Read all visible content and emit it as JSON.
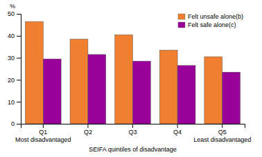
{
  "chart_data": {
    "type": "bar",
    "categories": [
      "Q1\nMost disadvantaged",
      "Q2",
      "Q3",
      "Q4",
      "Q5\nLeast disadvantaged"
    ],
    "series": [
      {
        "name": "Felt unsafe alone(b)",
        "color": "#F08030",
        "values": [
          46.5,
          38.5,
          40.5,
          33.5,
          30.5
        ]
      },
      {
        "name": "Felt safe alone(c)",
        "color": "#990099",
        "values": [
          29.5,
          31.5,
          28.5,
          26.5,
          23.5
        ]
      }
    ],
    "x_label": "SEIFA quintiles of disadvantage",
    "y_label": "%",
    "ylim": [
      0,
      50
    ],
    "yticks": [
      0,
      10,
      20,
      30,
      40,
      50
    ],
    "grid": false,
    "legend": "upper right"
  }
}
